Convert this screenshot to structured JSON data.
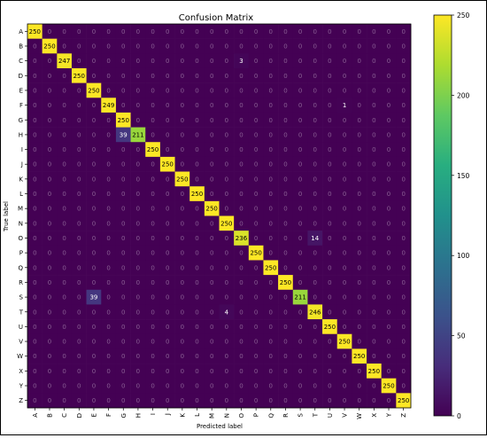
{
  "chart_data": {
    "type": "heatmap",
    "title": "Confusion Matrix",
    "xlabel": "Predicted label",
    "ylabel": "True label",
    "row_labels": [
      "A",
      "B",
      "C",
      "D",
      "E",
      "F",
      "G",
      "H",
      "I",
      "J",
      "K",
      "L",
      "M",
      "N",
      "O",
      "P",
      "Q",
      "R",
      "S",
      "T",
      "U",
      "V",
      "W",
      "X",
      "Y",
      "Z"
    ],
    "col_labels": [
      "A",
      "B",
      "C",
      "D",
      "E",
      "F",
      "G",
      "H",
      "I",
      "J",
      "K",
      "L",
      "M",
      "N",
      "O",
      "P",
      "Q",
      "R",
      "S",
      "T",
      "U",
      "V",
      "W",
      "X",
      "Y",
      "Z"
    ],
    "diagonal": [
      250,
      250,
      247,
      250,
      250,
      249,
      250,
      211,
      250,
      250,
      250,
      250,
      250,
      250,
      236,
      250,
      250,
      250,
      211,
      246,
      250,
      250,
      250,
      250,
      250,
      250
    ],
    "off_diagonal": [
      {
        "row": "C",
        "col": "O",
        "value": 3
      },
      {
        "row": "H",
        "col": "G",
        "value": 39
      },
      {
        "row": "O",
        "col": "T",
        "value": 14
      },
      {
        "row": "S",
        "col": "E",
        "value": 39
      },
      {
        "row": "T",
        "col": "N",
        "value": 4
      },
      {
        "row": "F",
        "col": "V",
        "value": 1
      }
    ],
    "colorbar": {
      "min": 0,
      "max": 250,
      "ticks": [
        0,
        50,
        100,
        150,
        200,
        250
      ]
    },
    "colormap": "viridis"
  }
}
